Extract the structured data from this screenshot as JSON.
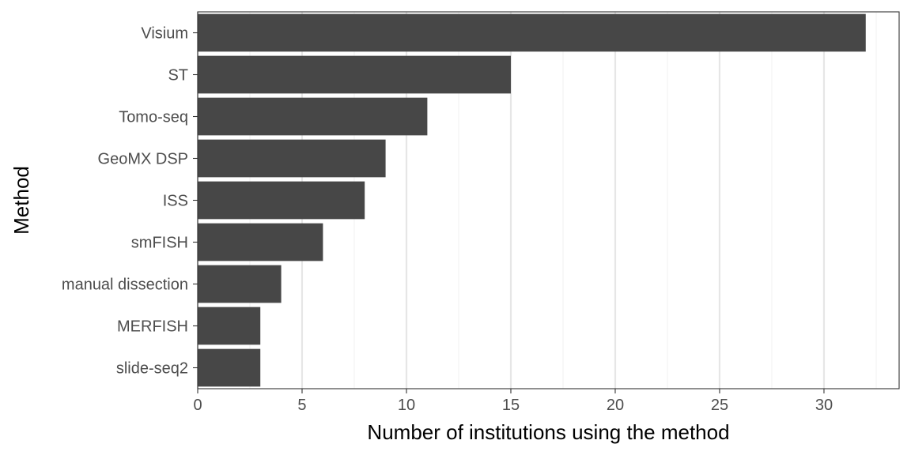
{
  "chart_data": {
    "type": "bar",
    "orientation": "horizontal",
    "title": "",
    "xlabel": "Number of institutions using the method",
    "ylabel": "Method",
    "categories": [
      "Visium",
      "ST",
      "Tomo-seq",
      "GeoMX DSP",
      "ISS",
      "smFISH",
      "manual dissection",
      "MERFISH",
      "slide-seq2"
    ],
    "values": [
      32,
      15,
      11,
      9,
      8,
      6,
      4,
      3,
      3
    ],
    "xlim": [
      0,
      33.6
    ],
    "xticks": [
      0,
      5,
      10,
      15,
      20,
      25,
      30
    ],
    "xtick_labels": [
      "0",
      "5",
      "10",
      "15",
      "20",
      "25",
      "30"
    ],
    "grid": "vertical major gridlines",
    "legend": "none"
  },
  "colors": {
    "bar": "#474747",
    "grid_major": "#e6e6e6",
    "grid_minor": "#f3f3f3",
    "panel_border": "#333333",
    "tick_text": "#4d4d4d",
    "axis_title": "#000000",
    "background": "#ffffff"
  }
}
